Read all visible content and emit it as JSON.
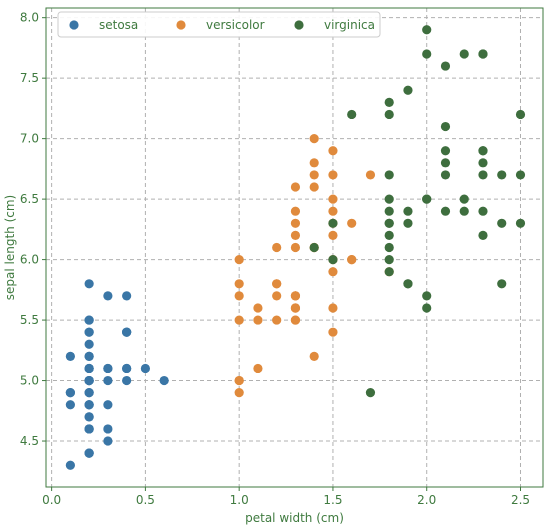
{
  "chart_data": {
    "type": "scatter",
    "xlabel": "petal width (cm)",
    "ylabel": "sepal length (cm)",
    "xlim": [
      -0.03,
      2.62
    ],
    "ylim": [
      4.12,
      8.08
    ],
    "xticks": [
      "0.0",
      "0.5",
      "1.0",
      "1.5",
      "2.0",
      "2.5"
    ],
    "xtick_values": [
      0.0,
      0.5,
      1.0,
      1.5,
      2.0,
      2.5
    ],
    "yticks": [
      "4.5",
      "5.0",
      "5.5",
      "6.0",
      "6.5",
      "7.0",
      "7.5",
      "8.0"
    ],
    "ytick_values": [
      4.5,
      5.0,
      5.5,
      6.0,
      6.5,
      7.0,
      7.5,
      8.0
    ],
    "grid": true,
    "legend_position": "top-left",
    "series": [
      {
        "name": "setosa",
        "color": "#3a76a6",
        "points": [
          [
            0.2,
            5.1
          ],
          [
            0.2,
            4.9
          ],
          [
            0.2,
            4.7
          ],
          [
            0.2,
            4.6
          ],
          [
            0.2,
            5.0
          ],
          [
            0.4,
            5.4
          ],
          [
            0.3,
            4.6
          ],
          [
            0.2,
            5.0
          ],
          [
            0.2,
            4.4
          ],
          [
            0.1,
            4.9
          ],
          [
            0.2,
            5.4
          ],
          [
            0.2,
            4.8
          ],
          [
            0.1,
            4.8
          ],
          [
            0.1,
            4.3
          ],
          [
            0.2,
            5.8
          ],
          [
            0.4,
            5.7
          ],
          [
            0.4,
            5.4
          ],
          [
            0.3,
            5.1
          ],
          [
            0.3,
            5.7
          ],
          [
            0.3,
            5.1
          ],
          [
            0.2,
            5.4
          ],
          [
            0.4,
            5.1
          ],
          [
            0.2,
            4.6
          ],
          [
            0.5,
            5.1
          ],
          [
            0.2,
            4.8
          ],
          [
            0.2,
            5.0
          ],
          [
            0.4,
            5.0
          ],
          [
            0.2,
            5.2
          ],
          [
            0.2,
            5.2
          ],
          [
            0.2,
            4.7
          ],
          [
            0.2,
            4.8
          ],
          [
            0.4,
            5.4
          ],
          [
            0.1,
            5.2
          ],
          [
            0.2,
            5.5
          ],
          [
            0.2,
            4.9
          ],
          [
            0.2,
            5.0
          ],
          [
            0.2,
            5.5
          ],
          [
            0.1,
            4.9
          ],
          [
            0.2,
            4.4
          ],
          [
            0.2,
            5.1
          ],
          [
            0.3,
            5.0
          ],
          [
            0.3,
            4.5
          ],
          [
            0.2,
            4.4
          ],
          [
            0.6,
            5.0
          ],
          [
            0.4,
            5.1
          ],
          [
            0.3,
            4.8
          ],
          [
            0.2,
            5.1
          ],
          [
            0.2,
            4.6
          ],
          [
            0.2,
            5.3
          ],
          [
            0.2,
            5.0
          ]
        ]
      },
      {
        "name": "versicolor",
        "color": "#e08a3c",
        "points": [
          [
            1.4,
            7.0
          ],
          [
            1.5,
            6.4
          ],
          [
            1.5,
            6.9
          ],
          [
            1.3,
            5.5
          ],
          [
            1.5,
            6.5
          ],
          [
            1.3,
            5.7
          ],
          [
            1.6,
            6.3
          ],
          [
            1.0,
            4.9
          ],
          [
            1.3,
            6.6
          ],
          [
            1.4,
            5.2
          ],
          [
            1.0,
            5.0
          ],
          [
            1.5,
            5.9
          ],
          [
            1.0,
            6.0
          ],
          [
            1.4,
            6.1
          ],
          [
            1.3,
            5.6
          ],
          [
            1.4,
            6.7
          ],
          [
            1.5,
            5.6
          ],
          [
            1.0,
            5.8
          ],
          [
            1.5,
            6.2
          ],
          [
            1.1,
            5.6
          ],
          [
            1.8,
            5.9
          ],
          [
            1.3,
            6.1
          ],
          [
            1.5,
            6.3
          ],
          [
            1.2,
            6.1
          ],
          [
            1.3,
            6.4
          ],
          [
            1.4,
            6.6
          ],
          [
            1.4,
            6.8
          ],
          [
            1.7,
            6.7
          ],
          [
            1.5,
            6.0
          ],
          [
            1.0,
            5.7
          ],
          [
            1.1,
            5.5
          ],
          [
            1.0,
            5.5
          ],
          [
            1.2,
            5.8
          ],
          [
            1.6,
            6.0
          ],
          [
            1.5,
            5.4
          ],
          [
            1.6,
            6.0
          ],
          [
            1.5,
            6.7
          ],
          [
            1.3,
            6.3
          ],
          [
            1.3,
            5.6
          ],
          [
            1.3,
            5.5
          ],
          [
            1.2,
            5.5
          ],
          [
            1.4,
            6.1
          ],
          [
            1.2,
            5.8
          ],
          [
            1.0,
            5.0
          ],
          [
            1.3,
            5.6
          ],
          [
            1.2,
            5.7
          ],
          [
            1.3,
            5.7
          ],
          [
            1.3,
            6.2
          ],
          [
            1.1,
            5.1
          ],
          [
            1.3,
            5.7
          ]
        ]
      },
      {
        "name": "virginica",
        "color": "#3e6e3e",
        "points": [
          [
            2.5,
            6.3
          ],
          [
            1.9,
            5.8
          ],
          [
            2.1,
            7.1
          ],
          [
            1.8,
            6.3
          ],
          [
            2.2,
            6.5
          ],
          [
            2.1,
            7.6
          ],
          [
            1.7,
            4.9
          ],
          [
            1.8,
            7.3
          ],
          [
            1.8,
            6.7
          ],
          [
            2.5,
            7.2
          ],
          [
            2.0,
            6.5
          ],
          [
            1.9,
            6.4
          ],
          [
            2.1,
            6.8
          ],
          [
            2.0,
            5.7
          ],
          [
            2.4,
            5.8
          ],
          [
            2.3,
            6.4
          ],
          [
            1.8,
            6.5
          ],
          [
            2.2,
            7.7
          ],
          [
            2.3,
            7.7
          ],
          [
            1.5,
            6.0
          ],
          [
            2.3,
            6.9
          ],
          [
            2.0,
            5.6
          ],
          [
            2.0,
            7.7
          ],
          [
            1.8,
            6.3
          ],
          [
            2.1,
            6.7
          ],
          [
            1.8,
            7.2
          ],
          [
            1.8,
            6.2
          ],
          [
            1.8,
            6.1
          ],
          [
            2.1,
            6.4
          ],
          [
            1.6,
            7.2
          ],
          [
            1.9,
            7.4
          ],
          [
            2.0,
            7.9
          ],
          [
            2.2,
            6.4
          ],
          [
            1.5,
            6.3
          ],
          [
            1.4,
            6.1
          ],
          [
            2.3,
            7.7
          ],
          [
            2.4,
            6.3
          ],
          [
            1.8,
            6.4
          ],
          [
            1.8,
            6.0
          ],
          [
            2.1,
            6.9
          ],
          [
            2.4,
            6.7
          ],
          [
            2.3,
            6.9
          ],
          [
            1.9,
            5.8
          ],
          [
            2.3,
            6.8
          ],
          [
            2.5,
            6.7
          ],
          [
            2.3,
            6.7
          ],
          [
            1.9,
            6.3
          ],
          [
            2.0,
            6.5
          ],
          [
            2.3,
            6.2
          ],
          [
            1.8,
            5.9
          ]
        ]
      }
    ]
  }
}
